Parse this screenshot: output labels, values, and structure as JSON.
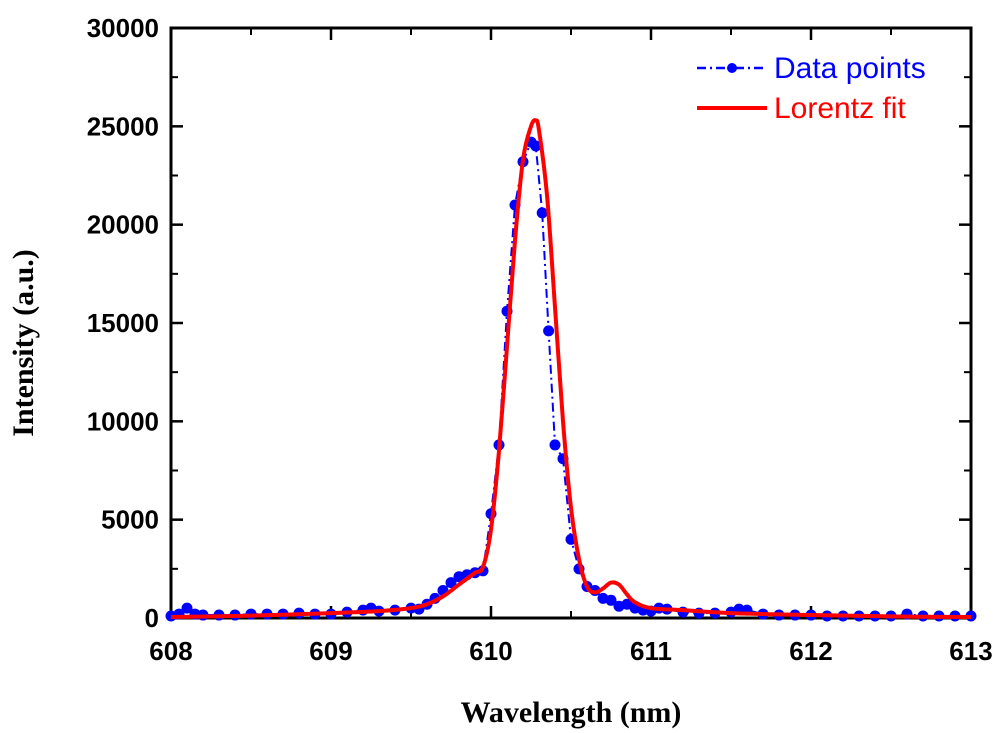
{
  "chart_data": {
    "type": "line",
    "title": "",
    "xlabel": "Wavelength (nm)",
    "ylabel": "Intensity (a.u.)",
    "xlim": [
      608,
      613
    ],
    "ylim": [
      0,
      30000
    ],
    "xticks": [
      "608",
      "609",
      "610",
      "611",
      "612",
      "613"
    ],
    "yticks": [
      "0",
      "5000",
      "10000",
      "15000",
      "20000",
      "25000",
      "30000"
    ],
    "grid": false,
    "legend_position": "top-right",
    "series": [
      {
        "name": "Data points",
        "style": "dash-dot line with circle markers",
        "color": "#0000ff",
        "x": [
          608.0,
          608.05,
          608.1,
          608.15,
          608.2,
          608.3,
          608.4,
          608.5,
          608.6,
          608.7,
          608.8,
          608.9,
          609.0,
          609.1,
          609.2,
          609.25,
          609.3,
          609.4,
          609.5,
          609.55,
          609.6,
          609.65,
          609.7,
          609.75,
          609.8,
          609.85,
          609.9,
          609.95,
          610.0,
          610.05,
          610.1,
          610.15,
          610.2,
          610.25,
          610.28,
          610.32,
          610.36,
          610.4,
          610.45,
          610.5,
          610.55,
          610.6,
          610.65,
          610.7,
          610.75,
          610.8,
          610.85,
          610.9,
          610.95,
          611.0,
          611.05,
          611.1,
          611.2,
          611.3,
          611.4,
          611.5,
          611.55,
          611.6,
          611.7,
          611.8,
          611.9,
          612.0,
          612.1,
          612.2,
          612.3,
          612.4,
          612.5,
          612.6,
          612.7,
          612.8,
          612.9,
          613.0
        ],
        "y": [
          100,
          200,
          500,
          200,
          150,
          150,
          150,
          200,
          200,
          200,
          250,
          200,
          200,
          300,
          400,
          500,
          350,
          400,
          500,
          450,
          700,
          1000,
          1400,
          1800,
          2100,
          2200,
          2300,
          2400,
          5300,
          8800,
          15600,
          21000,
          23200,
          24200,
          24000,
          20600,
          14600,
          8800,
          8100,
          4000,
          2500,
          1600,
          1400,
          1000,
          900,
          600,
          700,
          500,
          400,
          350,
          500,
          450,
          300,
          250,
          250,
          300,
          450,
          400,
          200,
          150,
          150,
          150,
          100,
          100,
          100,
          100,
          100,
          200,
          100,
          100,
          100,
          100
        ]
      },
      {
        "name": "Lorentz fit",
        "style": "solid line",
        "color": "#ff0000",
        "x": [
          608.0,
          608.5,
          609.0,
          609.3,
          609.5,
          609.6,
          609.7,
          609.8,
          609.9,
          609.95,
          610.0,
          610.05,
          610.1,
          610.15,
          610.2,
          610.25,
          610.28,
          610.3,
          610.35,
          610.4,
          610.45,
          610.5,
          610.55,
          610.6,
          610.65,
          610.7,
          610.75,
          610.8,
          610.85,
          610.9,
          611.0,
          611.2,
          611.5,
          612.0,
          612.5,
          613.0
        ],
        "y": [
          50,
          120,
          250,
          350,
          500,
          700,
          1100,
          1700,
          2300,
          2600,
          4500,
          8500,
          13800,
          19200,
          23300,
          25000,
          25300,
          24800,
          21500,
          15800,
          10000,
          5600,
          3000,
          1600,
          1300,
          1500,
          1800,
          1700,
          1200,
          800,
          500,
          400,
          250,
          150,
          80,
          50
        ]
      }
    ]
  }
}
